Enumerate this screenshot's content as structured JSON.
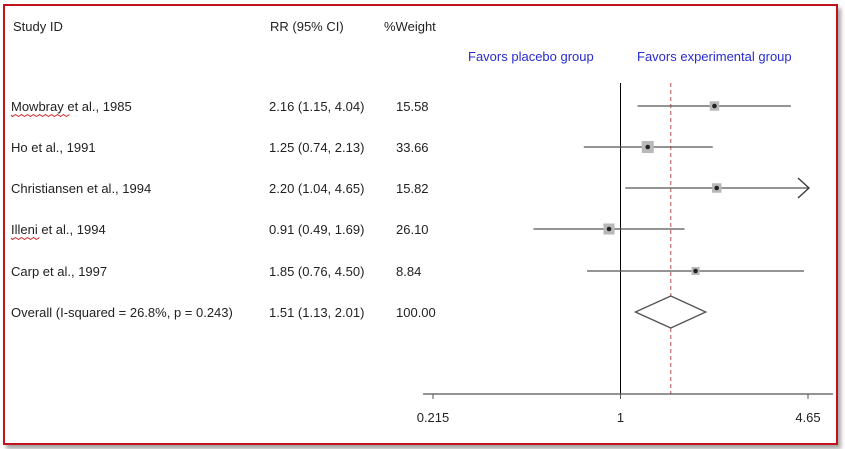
{
  "chart_data": {
    "type": "forest",
    "headers": {
      "study": "Study ID",
      "rr": "RR (95% CI)",
      "weight": "%Weight"
    },
    "favors": {
      "left": "Favors placebo group",
      "right": "Favors experimental group"
    },
    "x_scale": "log",
    "xlim": [
      0.215,
      4.65
    ],
    "x_ticks": [
      {
        "value": 0.215,
        "label": "0.215"
      },
      {
        "value": 1,
        "label": "1"
      },
      {
        "value": 4.65,
        "label": "4.65"
      }
    ],
    "null_line": 1,
    "studies": [
      {
        "id": "Mowbray et al., 1985",
        "rr_text": "2.16 (1.15, 4.04)",
        "weight_text": "15.58",
        "rr": 2.16,
        "lo": 1.15,
        "hi": 4.04,
        "weight": 15.58
      },
      {
        "id": "Ho et al., 1991",
        "rr_text": "1.25 (0.74, 2.13)",
        "weight_text": "33.66",
        "rr": 1.25,
        "lo": 0.74,
        "hi": 2.13,
        "weight": 33.66
      },
      {
        "id": "Christiansen et al., 1994",
        "rr_text": "2.20 (1.04, 4.65)",
        "weight_text": "15.82",
        "rr": 2.2,
        "lo": 1.04,
        "hi": 4.65,
        "weight": 15.82,
        "arrow_right": true
      },
      {
        "id": "Illeni et al., 1994",
        "rr_text": "0.91 (0.49, 1.69)",
        "weight_text": "26.10",
        "rr": 0.91,
        "lo": 0.49,
        "hi": 1.69,
        "weight": 26.1
      },
      {
        "id": "Carp et al., 1997",
        "rr_text": "1.85 (0.76, 4.50)",
        "weight_text": "8.84",
        "rr": 1.85,
        "lo": 0.76,
        "hi": 4.5,
        "weight": 8.84
      }
    ],
    "overall": {
      "id": "Overall (I-squared = 26.8%, p = 0.243)",
      "rr_text": "1.51 (1.13, 2.01)",
      "weight_text": "100.00",
      "rr": 1.51,
      "lo": 1.13,
      "hi": 2.01
    },
    "colors": {
      "frame": "#c0141c",
      "favors_text": "#2a2ad0",
      "null_line": "#000000",
      "overall_line": "#c0504d",
      "box": "#b8b8b8"
    }
  }
}
